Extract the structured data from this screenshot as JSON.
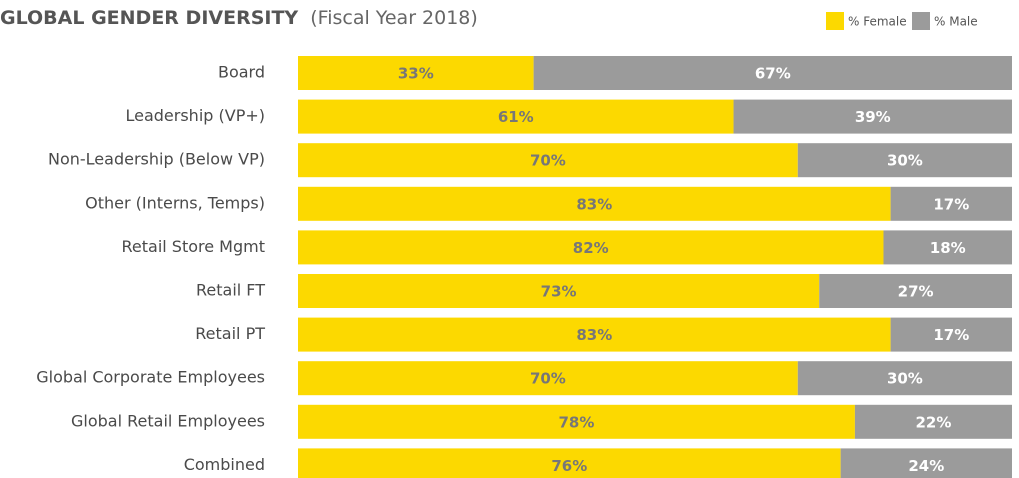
{
  "chart_data": {
    "type": "stacked_bar_horizontal",
    "title": "GLOBAL GENDER DIVERSITY",
    "subtitle": "(Fiscal Year 2018)",
    "categories": [
      "Board",
      "Leadership (VP+)",
      "Non-Leadership (Below VP)",
      "Other (Interns, Temps)",
      "Retail Store Mgmt",
      "Retail FT",
      "Retail PT",
      "Global Corporate Employees",
      "Global Retail Employees",
      "Combined"
    ],
    "xlim": [
      0,
      100
    ],
    "legend": "top-right",
    "series": [
      {
        "name": "% Female",
        "color": "#fcd900",
        "values": [
          33,
          61,
          70,
          83,
          82,
          73,
          83,
          70,
          78,
          76
        ],
        "value_labels": [
          "33%",
          "61%",
          "70%",
          "83%",
          "82%",
          "73%",
          "83%",
          "70%",
          "78%",
          "76%"
        ]
      },
      {
        "name": "% Male",
        "color": "#9b9b9b",
        "values": [
          67,
          39,
          30,
          17,
          18,
          27,
          17,
          30,
          22,
          24
        ],
        "value_labels": [
          "67%",
          "39%",
          "30%",
          "17%",
          "18%",
          "27%",
          "17%",
          "30%",
          "22%",
          "24%"
        ]
      }
    ]
  }
}
